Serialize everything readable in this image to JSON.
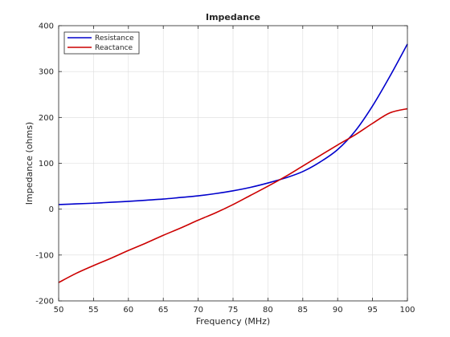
{
  "chart_data": {
    "type": "line",
    "title": "Impedance",
    "xlabel": "Frequency (MHz)",
    "ylabel": "Impedance (ohms)",
    "xlim": [
      50,
      100
    ],
    "ylim": [
      -200,
      400
    ],
    "xticks": [
      50,
      55,
      60,
      65,
      70,
      75,
      80,
      85,
      90,
      95,
      100
    ],
    "yticks": [
      -200,
      -100,
      0,
      100,
      200,
      300,
      400
    ],
    "grid": true,
    "legend_position": "top-left",
    "series": [
      {
        "name": "Resistance",
        "color": "#0000cc",
        "x": [
          50,
          52.5,
          55,
          57.5,
          60,
          62.5,
          65,
          67.5,
          70,
          72.5,
          75,
          77.5,
          80,
          82.5,
          85,
          87.5,
          90,
          92.5,
          95,
          97.5,
          100
        ],
        "y": [
          10,
          11.5,
          13,
          15,
          17,
          19.5,
          22,
          25.5,
          29,
          34,
          40,
          47.5,
          57,
          68,
          82,
          103,
          130,
          170,
          225,
          290,
          360
        ]
      },
      {
        "name": "Reactance",
        "color": "#cc0000",
        "x": [
          50,
          52.5,
          55,
          57.5,
          60,
          62.5,
          65,
          67.5,
          70,
          72.5,
          75,
          77.5,
          80,
          82.5,
          85,
          87.5,
          90,
          92.5,
          95,
          97.5,
          100
        ],
        "y": [
          -160,
          -140,
          -123,
          -107,
          -90,
          -74,
          -57,
          -41,
          -24,
          -8,
          10,
          30,
          50,
          71,
          94,
          117,
          140,
          162,
          187,
          210,
          219
        ]
      }
    ]
  }
}
